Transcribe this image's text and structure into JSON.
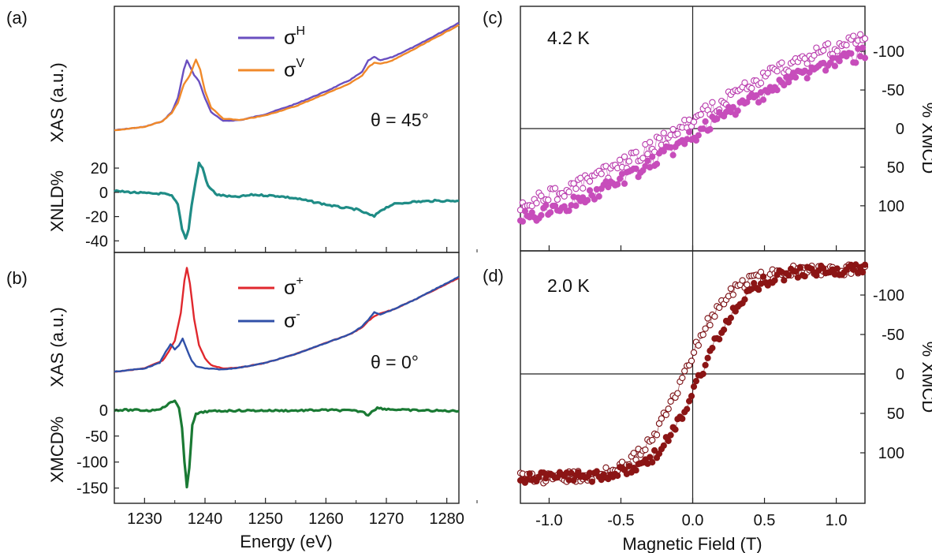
{
  "chart_data": [
    {
      "panel": "(a)",
      "type": "line",
      "xlabel": "",
      "xlim": [
        1225,
        1282
      ],
      "annotation": "θ = 45°",
      "top": {
        "ylabel": "XAS (a.u.)",
        "series": [
          {
            "name": "σH",
            "name_base": "σ",
            "name_sup": "H",
            "color": "#6a4fc0",
            "x": [
              1225,
              1230,
              1233,
              1234.5,
              1235.5,
              1236.5,
              1237,
              1237.5,
              1238.2,
              1239,
              1240,
              1241,
              1243,
              1246,
              1250,
              1255,
              1260,
              1264,
              1266,
              1267,
              1268,
              1269,
              1271,
              1275,
              1282
            ],
            "y": [
              0.02,
              0.05,
              0.1,
              0.18,
              0.3,
              0.55,
              0.63,
              0.58,
              0.5,
              0.45,
              0.3,
              0.18,
              0.1,
              0.11,
              0.16,
              0.25,
              0.36,
              0.46,
              0.53,
              0.63,
              0.66,
              0.63,
              0.66,
              0.76,
              0.96
            ]
          },
          {
            "name": "σV",
            "name_base": "σ",
            "name_sup": "V",
            "color": "#f0892a",
            "x": [
              1225,
              1230,
              1233,
              1234.5,
              1235.5,
              1236.5,
              1237.5,
              1238.5,
              1239.2,
              1240,
              1241,
              1243,
              1246,
              1250,
              1255,
              1260,
              1264,
              1266,
              1267,
              1268,
              1269,
              1271,
              1275,
              1282
            ],
            "y": [
              0.02,
              0.05,
              0.1,
              0.17,
              0.26,
              0.42,
              0.5,
              0.64,
              0.55,
              0.36,
              0.22,
              0.12,
              0.11,
              0.15,
              0.23,
              0.34,
              0.43,
              0.5,
              0.57,
              0.61,
              0.6,
              0.63,
              0.74,
              0.94
            ]
          }
        ]
      },
      "bottom": {
        "ylabel": "XNLD%",
        "ylim": [
          -45,
          35
        ],
        "yticks": [
          -40,
          -20,
          0,
          20
        ],
        "series": [
          {
            "name": "",
            "color": "#1f8c86",
            "x": [
              1225,
              1228,
              1231,
              1233,
              1234.5,
              1235.5,
              1236.2,
              1236.8,
              1237.3,
              1237.8,
              1238.5,
              1239,
              1239.6,
              1240.5,
              1242,
              1245,
              1248,
              1252,
              1255,
              1258,
              1262,
              1265,
              1267,
              1268,
              1269,
              1271,
              1274,
              1278,
              1282
            ],
            "y": [
              1,
              0,
              -1,
              -1,
              -3,
              -10,
              -30,
              -38,
              -30,
              -10,
              10,
              24,
              20,
              5,
              -2,
              -4,
              -2,
              -3,
              -5,
              -8,
              -12,
              -14,
              -18,
              -20,
              -15,
              -10,
              -8,
              -7,
              -7
            ]
          }
        ]
      }
    },
    {
      "panel": "(b)",
      "type": "line",
      "xlabel": "Energy (eV)",
      "xlim": [
        1225,
        1282
      ],
      "xticks": [
        1230,
        1240,
        1250,
        1260,
        1270,
        1280
      ],
      "annotation": "θ = 0°",
      "top": {
        "ylabel": "XAS (a.u.)",
        "series": [
          {
            "name": "σ+",
            "name_base": "σ",
            "name_sup": "+",
            "color": "#e0282e",
            "x": [
              1225,
              1230,
              1233,
              1234,
              1235,
              1236,
              1236.6,
              1237,
              1237.5,
              1238.2,
              1239,
              1240,
              1241,
              1243,
              1246,
              1250,
              1255,
              1260,
              1264,
              1266,
              1267,
              1268,
              1269,
              1271,
              1275,
              1282
            ],
            "y": [
              0.02,
              0.05,
              0.12,
              0.2,
              0.3,
              0.55,
              0.85,
              0.96,
              0.82,
              0.5,
              0.26,
              0.14,
              0.08,
              0.05,
              0.06,
              0.1,
              0.18,
              0.28,
              0.36,
              0.42,
              0.48,
              0.52,
              0.55,
              0.58,
              0.68,
              0.87
            ]
          },
          {
            "name": "σ-",
            "name_base": "σ",
            "name_sup": "-",
            "color": "#3050a8",
            "x": [
              1225,
              1230,
              1232.5,
              1233.5,
              1234.3,
              1235,
              1235.7,
              1236.3,
              1237,
              1237.8,
              1238.5,
              1240,
              1243,
              1246,
              1250,
              1255,
              1260,
              1264,
              1266,
              1267,
              1268,
              1269,
              1271,
              1275,
              1282
            ],
            "y": [
              0.02,
              0.05,
              0.1,
              0.2,
              0.27,
              0.22,
              0.26,
              0.32,
              0.22,
              0.12,
              0.07,
              0.05,
              0.04,
              0.06,
              0.1,
              0.18,
              0.28,
              0.36,
              0.43,
              0.49,
              0.56,
              0.54,
              0.58,
              0.68,
              0.88
            ]
          }
        ]
      },
      "bottom": {
        "ylabel": "XMCD%",
        "ylim": [
          -155,
          30
        ],
        "yticks": [
          -150,
          -100,
          -50,
          0
        ],
        "series": [
          {
            "name": "",
            "color": "#1a7a34",
            "x": [
              1225,
              1228,
              1231,
              1233,
              1234,
              1235,
              1235.7,
              1236.2,
              1236.6,
              1237,
              1237.4,
              1237.9,
              1238.5,
              1240,
              1242,
              1245,
              1250,
              1255,
              1260,
              1264,
              1266,
              1267,
              1267.6,
              1268.5,
              1270,
              1273,
              1277,
              1282
            ],
            "y": [
              0,
              0,
              -1,
              4,
              12,
              18,
              5,
              -35,
              -100,
              -148,
              -110,
              -30,
              -8,
              -3,
              -2,
              -1,
              -1,
              -1,
              0,
              -1,
              -3,
              -10,
              -2,
              4,
              2,
              0,
              -1,
              -2
            ]
          }
        ]
      }
    },
    {
      "panel": "(c)",
      "type": "scatter",
      "annotation": "4.2 K",
      "ylabel": "% XMCD",
      "xlim": [
        -1.2,
        1.2
      ],
      "ylim": [
        140,
        -140
      ],
      "yticks": [
        -100,
        -50,
        0,
        50,
        100
      ],
      "color": "#b83aad",
      "fill_color": "#c74dbb",
      "curve": {
        "A": 135,
        "k": 0.9,
        "h": 0
      },
      "filled_offset": 10,
      "open_offset": -10,
      "n_points": 150,
      "noise": 9
    },
    {
      "panel": "(d)",
      "type": "scatter",
      "annotation": "2.0 K",
      "ylabel": "% XMCD",
      "xlabel": "Magnetic Field (T)",
      "xlim": [
        -1.2,
        1.2
      ],
      "xticks": [
        -1.0,
        -0.5,
        0.0,
        0.5,
        1.0
      ],
      "xticklabels": [
        "-1.0",
        "-0.5",
        "0.0",
        "0.5",
        "1.0"
      ],
      "ylim": [
        140,
        -140
      ],
      "yticks": [
        -100,
        -50,
        0,
        50,
        100
      ],
      "color": "#7a0e12",
      "fill_color": "#8b1515",
      "curve": {
        "A": 132,
        "k": 3.2,
        "h": 0.06
      },
      "filled_offset": 0,
      "open_offset": 0,
      "n_points": 150,
      "noise": 7
    }
  ]
}
